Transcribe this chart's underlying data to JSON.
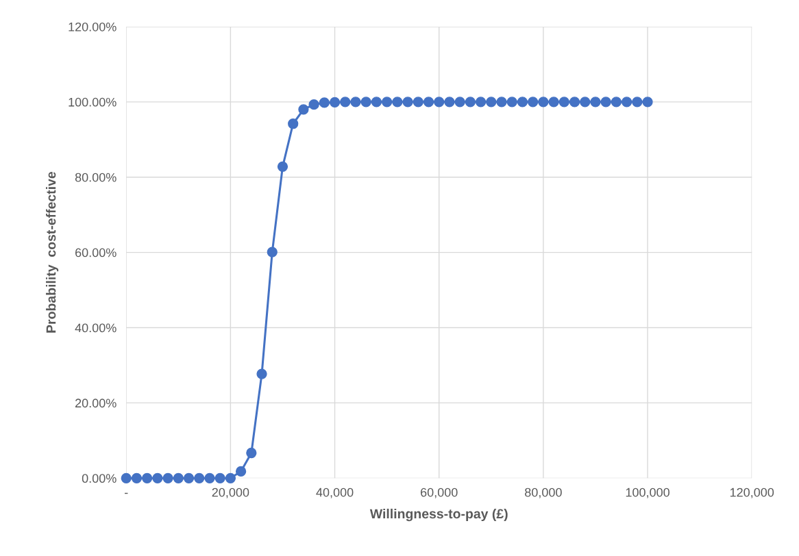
{
  "chart_data": {
    "type": "line",
    "xlabel": "Willingness-to-pay (£)",
    "ylabel": "Probability  cost-effective",
    "x": [
      0,
      2000,
      4000,
      6000,
      8000,
      10000,
      12000,
      14000,
      16000,
      18000,
      20000,
      22000,
      24000,
      26000,
      28000,
      30000,
      32000,
      34000,
      36000,
      38000,
      40000,
      42000,
      44000,
      46000,
      48000,
      50000,
      52000,
      54000,
      56000,
      58000,
      60000,
      62000,
      64000,
      66000,
      68000,
      70000,
      72000,
      74000,
      76000,
      78000,
      80000,
      82000,
      84000,
      86000,
      88000,
      90000,
      92000,
      94000,
      96000,
      98000,
      100000
    ],
    "series": [
      {
        "color": "#4472c4",
        "values": [
          0,
          0,
          0,
          0,
          0,
          0,
          0,
          0,
          0,
          0,
          0,
          1.8,
          6.7,
          27.7,
          60.1,
          82.8,
          94.2,
          98.0,
          99.3,
          99.8,
          99.9,
          100,
          100,
          100,
          100,
          100,
          100,
          100,
          100,
          100,
          100,
          100,
          100,
          100,
          100,
          100,
          100,
          100,
          100,
          100,
          100,
          100,
          100,
          100,
          100,
          100,
          100,
          100,
          100,
          100,
          100
        ]
      }
    ],
    "xlim": [
      0,
      120000
    ],
    "ylim": [
      0,
      120
    ],
    "xticks": [
      {
        "value": 0,
        "label": "-"
      },
      {
        "value": 20000,
        "label": "20,000"
      },
      {
        "value": 40000,
        "label": "40,000"
      },
      {
        "value": 60000,
        "label": "60,000"
      },
      {
        "value": 80000,
        "label": "80,000"
      },
      {
        "value": 100000,
        "label": "100,000"
      },
      {
        "value": 120000,
        "label": "120,000"
      }
    ],
    "yticks": [
      {
        "value": 0,
        "label": "0.00%"
      },
      {
        "value": 20,
        "label": "20.00%"
      },
      {
        "value": 40,
        "label": "40.00%"
      },
      {
        "value": 60,
        "label": "60.00%"
      },
      {
        "value": 80,
        "label": "80.00%"
      },
      {
        "value": 100,
        "label": "100.00%"
      },
      {
        "value": 120,
        "label": "120.00%"
      }
    ],
    "grid": true,
    "marker": "circle",
    "line_style": "solid"
  }
}
